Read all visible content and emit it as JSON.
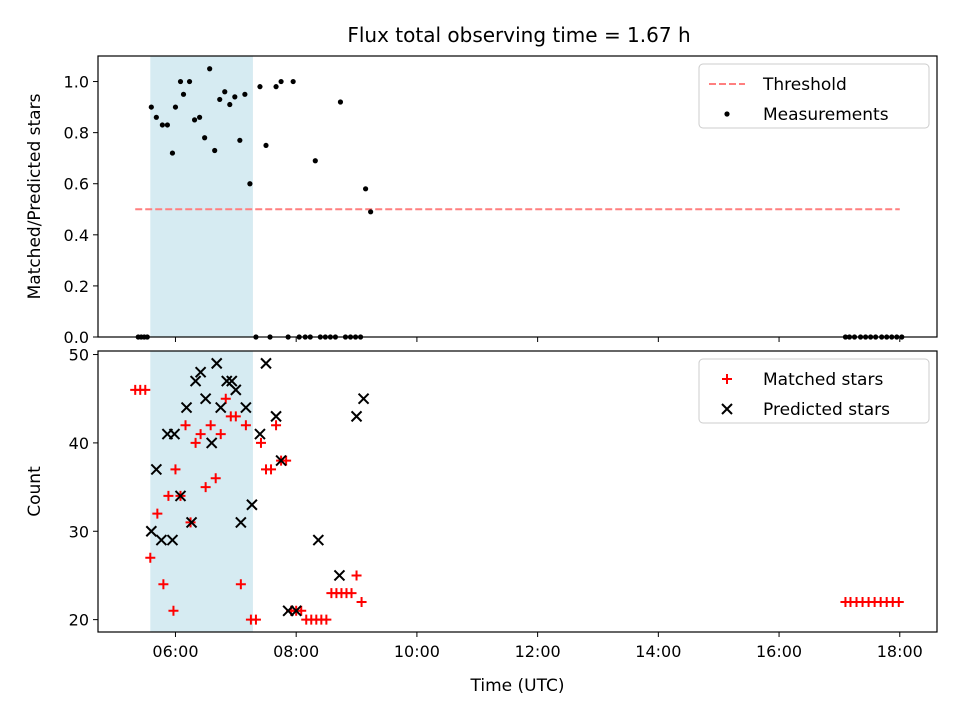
{
  "title": "Flux total observing time = 1.67 h",
  "colors": {
    "threshold": "#ff7f7f",
    "measurement": "#000000",
    "matched": "#ff0000",
    "predicted": "#000000",
    "span": "#add8e6"
  },
  "chart_data": [
    {
      "type": "scatter",
      "ylabel": "Matched/Predicted stars",
      "xlim": [
        "04:43",
        "18:37"
      ],
      "ylim": [
        0,
        1.1
      ],
      "yticks": [
        {
          "v": 0,
          "label": "0.0"
        },
        {
          "v": 0.2,
          "label": "0.2"
        },
        {
          "v": 0.4,
          "label": "0.4"
        },
        {
          "v": 0.6,
          "label": "0.6"
        },
        {
          "v": 0.8,
          "label": "0.8"
        },
        {
          "v": 1.0,
          "label": "1.0"
        }
      ],
      "shaded_span": [
        "05:35",
        "07:17"
      ],
      "threshold": {
        "name": "Threshold",
        "y": 0.5,
        "x": [
          "05:20",
          "18:00"
        ]
      },
      "legend": {
        "position": "top-right",
        "entries": [
          "Threshold",
          "Measurements"
        ]
      },
      "series": [
        {
          "name": "Measurements",
          "marker": "dot",
          "points": [
            [
              "05:23",
              0
            ],
            [
              "05:26",
              0
            ],
            [
              "05:29",
              0
            ],
            [
              "05:32",
              0
            ],
            [
              "05:36",
              0.9
            ],
            [
              "05:41",
              0.86
            ],
            [
              "05:47",
              0.83
            ],
            [
              "05:52",
              0.83
            ],
            [
              "05:57",
              0.72
            ],
            [
              "06:00",
              0.9
            ],
            [
              "06:05",
              1.0
            ],
            [
              "06:08",
              0.95
            ],
            [
              "06:14",
              1.0
            ],
            [
              "06:19",
              0.85
            ],
            [
              "06:24",
              0.86
            ],
            [
              "06:29",
              0.78
            ],
            [
              "06:34",
              1.05
            ],
            [
              "06:39",
              0.73
            ],
            [
              "06:44",
              0.93
            ],
            [
              "06:49",
              0.96
            ],
            [
              "06:54",
              0.91
            ],
            [
              "06:59",
              0.94
            ],
            [
              "07:04",
              0.77
            ],
            [
              "07:09",
              0.95
            ],
            [
              "07:14",
              0.6
            ],
            [
              "07:20",
              0
            ],
            [
              "07:24",
              0.98
            ],
            [
              "07:30",
              0.75
            ],
            [
              "07:34",
              0
            ],
            [
              "07:40",
              0.98
            ],
            [
              "07:45",
              1.0
            ],
            [
              "07:52",
              0
            ],
            [
              "07:57",
              1.0
            ],
            [
              "08:03",
              0
            ],
            [
              "08:09",
              0
            ],
            [
              "08:14",
              0
            ],
            [
              "08:19",
              0.69
            ],
            [
              "08:24",
              0
            ],
            [
              "08:29",
              0
            ],
            [
              "08:34",
              0
            ],
            [
              "08:39",
              0
            ],
            [
              "08:44",
              0.92
            ],
            [
              "08:49",
              0
            ],
            [
              "08:54",
              0
            ],
            [
              "08:59",
              0
            ],
            [
              "09:04",
              0
            ],
            [
              "09:09",
              0.58
            ],
            [
              "09:14",
              0.49
            ],
            [
              "17:06",
              0
            ],
            [
              "17:10",
              0
            ],
            [
              "17:15",
              0
            ],
            [
              "17:21",
              0
            ],
            [
              "17:26",
              0
            ],
            [
              "17:31",
              0
            ],
            [
              "17:36",
              0
            ],
            [
              "17:42",
              0
            ],
            [
              "17:47",
              0
            ],
            [
              "17:52",
              0
            ],
            [
              "17:57",
              0
            ],
            [
              "18:02",
              0
            ]
          ]
        }
      ]
    },
    {
      "type": "scatter",
      "xlabel": "Time (UTC)",
      "ylabel": "Count",
      "xlim": [
        "04:43",
        "18:37"
      ],
      "ylim": [
        18.6,
        50.4
      ],
      "yticks": [
        {
          "v": 20,
          "label": "20"
        },
        {
          "v": 30,
          "label": "30"
        },
        {
          "v": 40,
          "label": "40"
        },
        {
          "v": 50,
          "label": "50"
        }
      ],
      "xticks": [
        "06:00",
        "08:00",
        "10:00",
        "12:00",
        "14:00",
        "16:00",
        "18:00"
      ],
      "shaded_span": [
        "05:35",
        "07:17"
      ],
      "legend": {
        "position": "top-right",
        "entries": [
          "Matched stars",
          "Predicted stars"
        ]
      },
      "series": [
        {
          "name": "Matched stars",
          "marker": "plus",
          "points": [
            [
              "05:20",
              46
            ],
            [
              "05:25",
              46
            ],
            [
              "05:30",
              46
            ],
            [
              "05:35",
              27
            ],
            [
              "05:42",
              32
            ],
            [
              "05:48",
              24
            ],
            [
              "05:53",
              34
            ],
            [
              "05:58",
              21
            ],
            [
              "06:00",
              37
            ],
            [
              "06:05",
              34
            ],
            [
              "06:10",
              42
            ],
            [
              "06:15",
              31
            ],
            [
              "06:20",
              40
            ],
            [
              "06:25",
              41
            ],
            [
              "06:30",
              35
            ],
            [
              "06:35",
              42
            ],
            [
              "06:40",
              36
            ],
            [
              "06:45",
              41
            ],
            [
              "06:50",
              45
            ],
            [
              "06:55",
              43
            ],
            [
              "07:00",
              43
            ],
            [
              "07:05",
              24
            ],
            [
              "07:10",
              42
            ],
            [
              "07:15",
              20
            ],
            [
              "07:20",
              20
            ],
            [
              "07:25",
              40
            ],
            [
              "07:30",
              37
            ],
            [
              "07:35",
              37
            ],
            [
              "07:40",
              42
            ],
            [
              "07:45",
              38
            ],
            [
              "07:50",
              38
            ],
            [
              "07:55",
              21
            ],
            [
              "08:00",
              21
            ],
            [
              "08:05",
              21
            ],
            [
              "08:10",
              20
            ],
            [
              "08:15",
              20
            ],
            [
              "08:20",
              20
            ],
            [
              "08:25",
              20
            ],
            [
              "08:30",
              20
            ],
            [
              "08:35",
              23
            ],
            [
              "08:40",
              23
            ],
            [
              "08:45",
              23
            ],
            [
              "08:50",
              23
            ],
            [
              "08:55",
              23
            ],
            [
              "09:00",
              25
            ],
            [
              "09:05",
              22
            ],
            [
              "17:06",
              22
            ],
            [
              "17:11",
              22
            ],
            [
              "17:17",
              22
            ],
            [
              "17:23",
              22
            ],
            [
              "17:29",
              22
            ],
            [
              "17:35",
              22
            ],
            [
              "17:41",
              22
            ],
            [
              "17:47",
              22
            ],
            [
              "17:53",
              22
            ],
            [
              "17:59",
              22
            ]
          ]
        },
        {
          "name": "Predicted stars",
          "marker": "x",
          "points": [
            [
              "05:36",
              30
            ],
            [
              "05:41",
              37
            ],
            [
              "05:46",
              29
            ],
            [
              "05:52",
              41
            ],
            [
              "05:57",
              29
            ],
            [
              "05:59",
              41
            ],
            [
              "06:05",
              34
            ],
            [
              "06:11",
              44
            ],
            [
              "06:16",
              31
            ],
            [
              "06:20",
              47
            ],
            [
              "06:25",
              48
            ],
            [
              "06:30",
              45
            ],
            [
              "06:36",
              40
            ],
            [
              "06:41",
              49
            ],
            [
              "06:45",
              44
            ],
            [
              "06:51",
              47
            ],
            [
              "06:56",
              47
            ],
            [
              "07:00",
              46
            ],
            [
              "07:05",
              31
            ],
            [
              "07:10",
              44
            ],
            [
              "07:16",
              33
            ],
            [
              "07:24",
              41
            ],
            [
              "07:30",
              49
            ],
            [
              "07:40",
              43
            ],
            [
              "07:45",
              38
            ],
            [
              "07:52",
              21
            ],
            [
              "08:00",
              21
            ],
            [
              "08:22",
              29
            ],
            [
              "08:43",
              25
            ],
            [
              "09:00",
              43
            ],
            [
              "09:07",
              45
            ]
          ]
        }
      ]
    }
  ]
}
